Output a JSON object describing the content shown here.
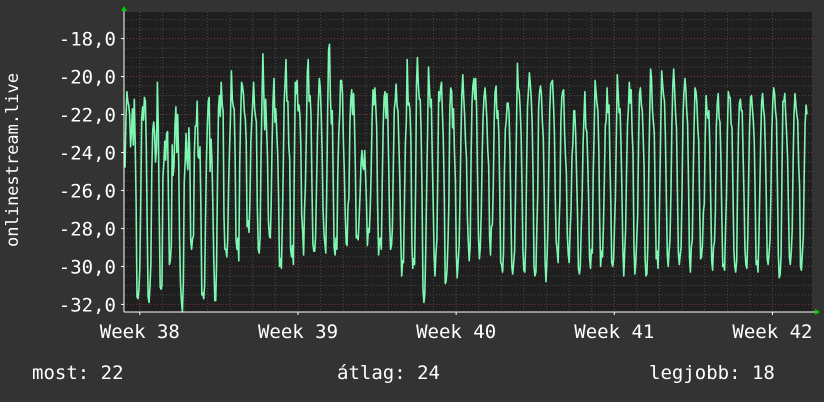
{
  "chart_data": {
    "type": "line",
    "ylabel": "onlinestream.live",
    "xlabel": "",
    "title": "",
    "x_ticks": [
      "Week 38",
      "Week 39",
      "Week 40",
      "Week 41",
      "Week 42"
    ],
    "y_ticks": [
      "-18,0",
      "-20,0",
      "-22,0",
      "-24,0",
      "-26,0",
      "-28,0",
      "-30,0",
      "-32,0"
    ],
    "ylim": [
      -32.4,
      -16.6
    ],
    "xlim": [
      37.9,
      42.25
    ],
    "grid": true,
    "colors": {
      "background": "#333333",
      "plot_area": "#1f1f1f",
      "grid_major": "#7a3a3a",
      "grid_minor": "#4a4a4a",
      "series": "#7ef7b2",
      "axis": "#ffffff",
      "arrow": "#00cc00"
    },
    "series": [
      {
        "values": [
          -24.8,
          -22.3,
          -20.8,
          -21.3,
          -21.5,
          -22.0,
          -23.7,
          -22.9,
          -21.7,
          -23.6,
          -21.2,
          -23.5,
          -26.6,
          -31.6,
          -31.7,
          -31.2,
          -30.1,
          -26.8,
          -22.2,
          -21.6,
          -22.3,
          -21.1,
          -21.3,
          -23.7,
          -27.8,
          -31.6,
          -31.9,
          -31.0,
          -29.8,
          -24.9,
          -22.8,
          -22.4,
          -23.0,
          -24.5,
          -23.8,
          -20.3,
          -22.6,
          -27.1,
          -31.1,
          -31.2,
          -31.0,
          -25.3,
          -24.5,
          -23.4,
          -24.4,
          -23.0,
          -22.9,
          -26.6,
          -29.9,
          -29.7,
          -28.9,
          -23.6,
          -25.2,
          -24.7,
          -22.6,
          -21.6,
          -24.0,
          -22.0,
          -24.5,
          -28.6,
          -30.9,
          -31.8,
          -32.4,
          -30.9,
          -25.6,
          -24.6,
          -23.0,
          -24.4,
          -24.9,
          -22.7,
          -24.1,
          -28.6,
          -29.1,
          -28.5,
          -28.4,
          -24.0,
          -22.6,
          -22.6,
          -21.3,
          -24.2,
          -24.3,
          -23.7,
          -26.9,
          -31.5,
          -31.4,
          -31.7,
          -31.0,
          -27.6,
          -24.5,
          -22.5,
          -21.3,
          -21.1,
          -25.0,
          -23.3,
          -24.5,
          -26.9,
          -29.7,
          -31.8,
          -31.8,
          -29.8,
          -25.5,
          -21.7,
          -21.0,
          -22.1,
          -20.3,
          -21.5,
          -21.8,
          -27.4,
          -29.1,
          -29.1,
          -29.5,
          -28.6,
          -25.7,
          -23.7,
          -22.1,
          -19.7,
          -21.2,
          -21.6,
          -21.7,
          -24.1,
          -28.6,
          -29.1,
          -28.5,
          -29.7,
          -24.7,
          -22.0,
          -20.3,
          -20.5,
          -20.9,
          -21.9,
          -22.2,
          -23.4,
          -27.9,
          -27.6,
          -28.2,
          -26.6,
          -23.4,
          -22.3,
          -21.4,
          -20.3,
          -21.7,
          -22.1,
          -22.4,
          -26.8,
          -29.1,
          -29.3,
          -28.5,
          -24.3,
          -21.1,
          -18.8,
          -20.9,
          -22.8,
          -21.2,
          -22.8,
          -24.2,
          -27.6,
          -28.4,
          -28.5,
          -26.7,
          -23.5,
          -21.2,
          -20.1,
          -22.4,
          -21.7,
          -23.0,
          -24.1,
          -26.4,
          -30.0,
          -29.6,
          -30.1,
          -27.8,
          -25.0,
          -21.3,
          -20.3,
          -19.1,
          -21.3,
          -21.3,
          -23.7,
          -24.3,
          -29.1,
          -29.5,
          -28.9,
          -29.9,
          -24.8,
          -20.3,
          -20.9,
          -20.2,
          -21.8,
          -21.5,
          -22.0,
          -23.6,
          -27.3,
          -28.2,
          -29.4,
          -27.0,
          -25.8,
          -22.9,
          -19.8,
          -19.1,
          -21.3,
          -21.0,
          -22.0,
          -25.6,
          -28.8,
          -29.2,
          -29.2,
          -28.4,
          -25.6,
          -23.0,
          -21.3,
          -20.1,
          -20.6,
          -22.0,
          -23.9,
          -26.9,
          -28.3,
          -28.8,
          -29.3,
          -26.1,
          -21.7,
          -18.6,
          -18.3,
          -21.1,
          -22.5,
          -21.8,
          -25.4,
          -29.0,
          -29.4,
          -28.5,
          -29.1,
          -25.1,
          -23.0,
          -22.0,
          -20.2,
          -20.2,
          -20.9,
          -23.4,
          -25.0,
          -27.2,
          -28.8,
          -28.9,
          -26.8,
          -26.4,
          -22.5,
          -21.2,
          -20.7,
          -22.0,
          -20.9,
          -22.5,
          -24.9,
          -28.5,
          -28.4,
          -28.6,
          -27.5,
          -26.3,
          -24.6,
          -23.9,
          -24.7,
          -24.9,
          -23.9,
          -25.2,
          -26.7,
          -28.9,
          -28.0,
          -28.2,
          -27.0,
          -25.2,
          -22.2,
          -20.7,
          -21.5,
          -20.6,
          -21.6,
          -22.7,
          -26.7,
          -29.4,
          -28.6,
          -28.5,
          -29.1,
          -25.4,
          -22.6,
          -21.1,
          -20.8,
          -22.2,
          -20.9,
          -22.1,
          -24.7,
          -27.8,
          -29.1,
          -28.9,
          -28.0,
          -24.5,
          -21.7,
          -21.3,
          -20.4,
          -21.6,
          -21.8,
          -23.6,
          -25.4,
          -28.5,
          -30.5,
          -29.7,
          -29.8,
          -26.5,
          -23.5,
          -22.4,
          -19.1,
          -21.5,
          -21.4,
          -21.8,
          -23.3,
          -28.8,
          -30.1,
          -29.6,
          -29.9,
          -25.9,
          -20.4,
          -19.0,
          -20.4,
          -21.2,
          -21.2,
          -22.9,
          -26.0,
          -31.2,
          -31.9,
          -31.5,
          -29.3,
          -25.7,
          -22.9,
          -19.5,
          -20.6,
          -21.6,
          -21.2,
          -24.1,
          -26.4,
          -29.4,
          -30.5,
          -29.4,
          -28.6,
          -25.1,
          -20.8,
          -21.3,
          -20.6,
          -20.3,
          -21.9,
          -23.3,
          -26.2,
          -30.9,
          -30.8,
          -30.2,
          -28.7,
          -26.6,
          -21.8,
          -20.6,
          -20.8,
          -22.7,
          -21.7,
          -23.9,
          -25.5,
          -29.3,
          -30.6,
          -29.8,
          -28.9,
          -26.4,
          -23.3,
          -21.0,
          -19.9,
          -21.1,
          -22.0,
          -23.4,
          -24.3,
          -27.4,
          -28.7,
          -29.7,
          -28.9,
          -24.2,
          -21.4,
          -20.5,
          -20.1,
          -21.2,
          -20.1,
          -21.7,
          -25.5,
          -28.5,
          -29.6,
          -29.0,
          -27.1,
          -24.1,
          -22.1,
          -21.1,
          -20.6,
          -21.3,
          -22.2,
          -23.8,
          -24.7,
          -28.4,
          -29.4,
          -27.9,
          -27.8,
          -25.7,
          -22.3,
          -20.8,
          -20.5,
          -22.2,
          -21.8,
          -23.1,
          -26.3,
          -29.8,
          -29.9,
          -30.3,
          -29.3,
          -25.1,
          -22.8,
          -22.3,
          -21.4,
          -21.4,
          -21.9,
          -24.0,
          -27.2,
          -30.0,
          -30.4,
          -29.8,
          -29.2,
          -26.3,
          -23.0,
          -19.3,
          -20.6,
          -20.8,
          -21.6,
          -23.0,
          -25.8,
          -29.1,
          -30.2,
          -30.3,
          -28.9,
          -24.9,
          -21.6,
          -20.7,
          -19.8,
          -20.4,
          -21.1,
          -22.5,
          -25.4,
          -30.0,
          -30.5,
          -30.3,
          -28.1,
          -26.2,
          -21.7,
          -20.8,
          -20.5,
          -20.9,
          -22.3,
          -23.2,
          -26.1,
          -29.8,
          -30.8,
          -29.6,
          -28.0,
          -24.8,
          -21.8,
          -20.4,
          -20.3,
          -20.2,
          -21.3,
          -22.9,
          -26.4,
          -28.7,
          -29.1,
          -29.8,
          -27.9,
          -26.5,
          -22.3,
          -21.1,
          -20.8,
          -20.7,
          -23.0,
          -24.2,
          -25.1,
          -28.3,
          -29.4,
          -29.8,
          -28.1,
          -27.1,
          -24.2,
          -23.5,
          -21.8,
          -21.8,
          -23.1,
          -25.2,
          -27.2,
          -30.1,
          -30.4,
          -30.0,
          -28.1,
          -26.4,
          -23.5,
          -22.1,
          -20.8,
          -22.7,
          -22.9,
          -24.4,
          -26.4,
          -29.5,
          -30.1,
          -29.1,
          -29.3,
          -25.2,
          -22.8,
          -20.2,
          -20.8,
          -21.4,
          -21.8,
          -23.8,
          -27.6,
          -30.0,
          -29.2,
          -29.5,
          -27.9,
          -25.6,
          -22.6,
          -22.3,
          -20.6,
          -21.9,
          -21.5,
          -24.3,
          -26.6,
          -29.8,
          -30.0,
          -29.6,
          -27.9,
          -26.4,
          -22.9,
          -19.9,
          -20.9,
          -21.9,
          -21.7,
          -23.6,
          -26.0,
          -29.2,
          -30.5,
          -29.2,
          -28.1,
          -24.9,
          -22.5,
          -21.7,
          -20.3,
          -21.4,
          -20.7,
          -22.9,
          -24.0,
          -29.1,
          -30.4,
          -29.8,
          -28.6,
          -27.3,
          -23.4,
          -20.9,
          -20.6,
          -21.5,
          -21.8,
          -23.2,
          -24.8,
          -29.6,
          -30.5,
          -30.4,
          -28.9,
          -24.9,
          -22.0,
          -19.6,
          -20.1,
          -21.8,
          -22.4,
          -23.0,
          -26.4,
          -29.6,
          -29.2,
          -30.1,
          -28.6,
          -25.6,
          -22.5,
          -19.7,
          -20.4,
          -21.0,
          -21.3,
          -23.1,
          -26.2,
          -29.4,
          -30.0,
          -29.2,
          -28.6,
          -26.0,
          -22.5,
          -20.5,
          -19.6,
          -20.8,
          -22.0,
          -22.7,
          -26.0,
          -29.3,
          -29.9,
          -29.4,
          -29.0,
          -25.8,
          -22.1,
          -20.9,
          -20.1,
          -20.6,
          -21.8,
          -22.5,
          -25.9,
          -29.5,
          -30.3,
          -29.0,
          -28.6,
          -25.3,
          -22.6,
          -20.6,
          -20.8,
          -21.4,
          -22.7,
          -23.4,
          -27.0,
          -29.6,
          -29.5,
          -28.9,
          -27.1,
          -26.7,
          -23.2,
          -21.0,
          -21.9,
          -22.2,
          -21.8,
          -23.7,
          -26.7,
          -29.7,
          -30.2,
          -29.0,
          -28.7,
          -27.1,
          -22.7,
          -21.5,
          -20.9,
          -22.2,
          -22.4,
          -24.3,
          -27.6,
          -30.0,
          -29.9,
          -30.2,
          -27.9,
          -26.2,
          -22.9,
          -20.8,
          -21.1,
          -21.1,
          -22.5,
          -22.7,
          -26.2,
          -29.2,
          -30.0,
          -30.3,
          -29.7,
          -25.6,
          -22.8,
          -21.4,
          -21.2,
          -21.8,
          -21.8,
          -24.1,
          -26.5,
          -29.2,
          -29.9,
          -30.1,
          -28.4,
          -25.1,
          -22.6,
          -21.1,
          -21.0,
          -21.7,
          -22.3,
          -23.5,
          -26.4,
          -29.9,
          -29.7,
          -30.3,
          -28.5,
          -26.0,
          -23.3,
          -21.3,
          -20.9,
          -21.7,
          -22.1,
          -23.9,
          -26.4,
          -29.6,
          -29.9,
          -29.3,
          -28.6,
          -26.2,
          -23.0,
          -21.3,
          -20.6,
          -20.9,
          -21.8,
          -22.3,
          -25.6,
          -29.3,
          -30.6,
          -30.4,
          -29.4,
          -25.0,
          -21.3,
          -21.3,
          -20.9,
          -22.0,
          -23.0,
          -24.3,
          -27.0,
          -29.5,
          -29.9,
          -29.2,
          -28.1,
          -24.6,
          -22.0,
          -20.9,
          -21.5,
          -22.0,
          -22.3,
          -24.7,
          -25.8,
          -30.0,
          -30.2,
          -29.3,
          -28.5,
          -25.2,
          -22.5,
          -21.5,
          -22.0
        ]
      }
    ]
  },
  "stats": {
    "now_label": "most:",
    "now_value": "22",
    "avg_label": "átlag:",
    "avg_value": "24",
    "max_label": "legjobb:",
    "max_value": "18"
  }
}
